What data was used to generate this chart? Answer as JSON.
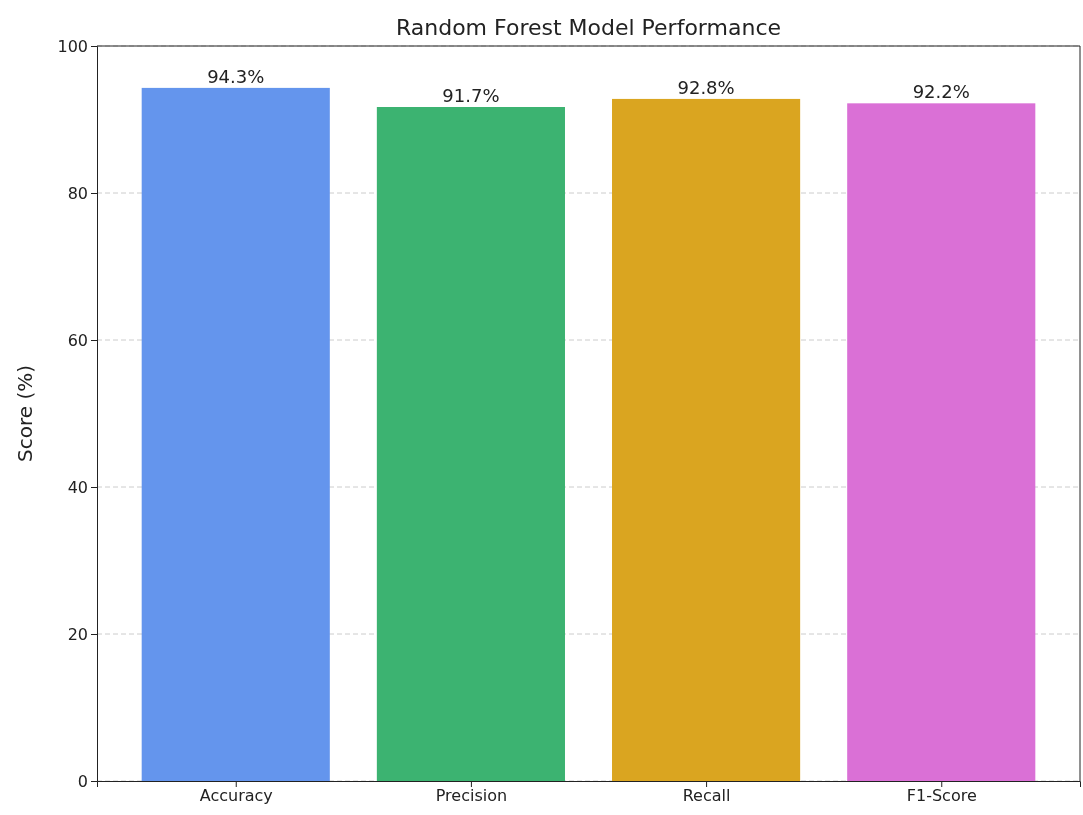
{
  "chart_data": {
    "type": "bar",
    "title": "Random Forest Model Performance",
    "ylabel": "Score (%)",
    "categories": [
      "Accuracy",
      "Precision",
      "Recall",
      "F1-Score"
    ],
    "values": [
      94.3,
      91.7,
      92.8,
      92.2
    ],
    "colors": [
      "#6495ed",
      "#3cb371",
      "#daa520",
      "#da70d6"
    ],
    "value_labels": [
      "94.3%",
      "91.7%",
      "92.8%",
      "92.2%"
    ],
    "ylim": [
      0,
      100
    ],
    "yticks": [
      0,
      20,
      40,
      60,
      80,
      100
    ],
    "grid": "y"
  }
}
